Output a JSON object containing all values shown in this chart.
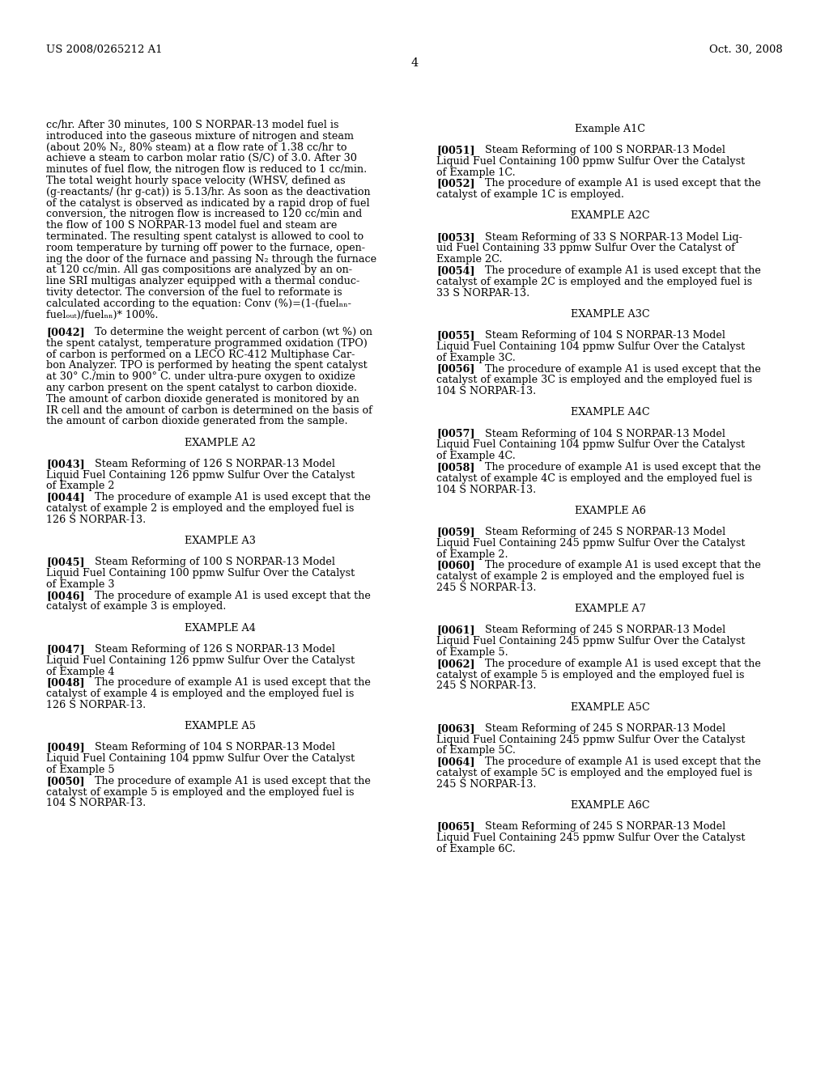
{
  "header_left": "US 2008/0265212 A1",
  "header_right": "Oct. 30, 2008",
  "page_number": "4",
  "background_color": "#ffffff",
  "left_col_lines": [
    "cc/hr. After 30 minutes, 100 S NORPAR-13 model fuel is",
    "introduced into the gaseous mixture of nitrogen and steam",
    "(about 20% N₂, 80% steam) at a flow rate of 1.38 cc/hr to",
    "achieve a steam to carbon molar ratio (S/C) of 3.0. After 30",
    "minutes of fuel flow, the nitrogen flow is reduced to 1 cc/min.",
    "The total weight hourly space velocity (WHSV, defined as",
    "(g-reactants/ (hr g-cat)) is 5.13/hr. As soon as the deactivation",
    "of the catalyst is observed as indicated by a rapid drop of fuel",
    "conversion, the nitrogen flow is increased to 120 cc/min and",
    "the flow of 100 S NORPAR-13 model fuel and steam are",
    "terminated. The resulting spent catalyst is allowed to cool to",
    "room temperature by turning off power to the furnace, open-",
    "ing the door of the furnace and passing N₂ through the furnace",
    "at 120 cc/min. All gas compositions are analyzed by an on-",
    "line SRI multigas analyzer equipped with a thermal conduc-",
    "tivity detector. The conversion of the fuel to reformate is",
    "calculated according to the equation: Conv (%)=(1-(fuelₙₙ-",
    "fuelₒᵤₜ)/fuelₙₙ)* 100%.",
    "",
    "[0042]    To determine the weight percent of carbon (wt %) on",
    "the spent catalyst, temperature programmed oxidation (TPO)",
    "of carbon is performed on a LECO RC-412 Multiphase Car-",
    "bon Analyzer. TPO is performed by heating the spent catalyst",
    "at 30° C./min to 900° C. under ultra-pure oxygen to oxidize",
    "any carbon present on the spent catalyst to carbon dioxide.",
    "The amount of carbon dioxide generated is monitored by an",
    "IR cell and the amount of carbon is determined on the basis of",
    "the amount of carbon dioxide generated from the sample.",
    "",
    "CENTER:EXAMPLE A2",
    "",
    "[0043]    Steam Reforming of 126 S NORPAR-13 Model",
    "Liquid Fuel Containing 126 ppmw Sulfur Over the Catalyst",
    "of Example 2",
    "[0044]    The procedure of example A1 is used except that the",
    "catalyst of example 2 is employed and the employed fuel is",
    "126 S NORPAR-13.",
    "",
    "CENTER:EXAMPLE A3",
    "",
    "[0045]    Steam Reforming of 100 S NORPAR-13 Model",
    "Liquid Fuel Containing 100 ppmw Sulfur Over the Catalyst",
    "of Example 3",
    "[0046]    The procedure of example A1 is used except that the",
    "catalyst of example 3 is employed.",
    "",
    "CENTER:EXAMPLE A4",
    "",
    "[0047]    Steam Reforming of 126 S NORPAR-13 Model",
    "Liquid Fuel Containing 126 ppmw Sulfur Over the Catalyst",
    "of Example 4",
    "[0048]    The procedure of example A1 is used except that the",
    "catalyst of example 4 is employed and the employed fuel is",
    "126 S NORPAR-13.",
    "",
    "CENTER:EXAMPLE A5",
    "",
    "[0049]    Steam Reforming of 104 S NORPAR-13 Model",
    "Liquid Fuel Containing 104 ppmw Sulfur Over the Catalyst",
    "of Example 5",
    "[0050]    The procedure of example A1 is used except that the",
    "catalyst of example 5 is employed and the employed fuel is",
    "104 S NORPAR-13."
  ],
  "right_col_lines": [
    "CENTER:Example A1C",
    "",
    "[0051]    Steam Reforming of 100 S NORPAR-13 Model",
    "Liquid Fuel Containing 100 ppmw Sulfur Over the Catalyst",
    "of Example 1C.",
    "[0052]    The procedure of example A1 is used except that the",
    "catalyst of example 1C is employed.",
    "",
    "CENTER:EXAMPLE A2C",
    "",
    "[0053]    Steam Reforming of 33 S NORPAR-13 Model Liq-",
    "uid Fuel Containing 33 ppmw Sulfur Over the Catalyst of",
    "Example 2C.",
    "[0054]    The procedure of example A1 is used except that the",
    "catalyst of example 2C is employed and the employed fuel is",
    "33 S NORPAR-13.",
    "",
    "CENTER:EXAMPLE A3C",
    "",
    "[0055]    Steam Reforming of 104 S NORPAR-13 Model",
    "Liquid Fuel Containing 104 ppmw Sulfur Over the Catalyst",
    "of Example 3C.",
    "[0056]    The procedure of example A1 is used except that the",
    "catalyst of example 3C is employed and the employed fuel is",
    "104 S NORPAR-13.",
    "",
    "CENTER:EXAMPLE A4C",
    "",
    "[0057]    Steam Reforming of 104 S NORPAR-13 Model",
    "Liquid Fuel Containing 104 ppmw Sulfur Over the Catalyst",
    "of Example 4C.",
    "[0058]    The procedure of example A1 is used except that the",
    "catalyst of example 4C is employed and the employed fuel is",
    "104 S NORPAR-13.",
    "",
    "CENTER:EXAMPLE A6",
    "",
    "[0059]    Steam Reforming of 245 S NORPAR-13 Model",
    "Liquid Fuel Containing 245 ppmw Sulfur Over the Catalyst",
    "of Example 2.",
    "[0060]    The procedure of example A1 is used except that the",
    "catalyst of example 2 is employed and the employed fuel is",
    "245 S NORPAR-13.",
    "",
    "CENTER:EXAMPLE A7",
    "",
    "[0061]    Steam Reforming of 245 S NORPAR-13 Model",
    "Liquid Fuel Containing 245 ppmw Sulfur Over the Catalyst",
    "of Example 5.",
    "[0062]    The procedure of example A1 is used except that the",
    "catalyst of example 5 is employed and the employed fuel is",
    "245 S NORPAR-13.",
    "",
    "CENTER:EXAMPLE A5C",
    "",
    "[0063]    Steam Reforming of 245 S NORPAR-13 Model",
    "Liquid Fuel Containing 245 ppmw Sulfur Over the Catalyst",
    "of Example 5C.",
    "[0064]    The procedure of example A1 is used except that the",
    "catalyst of example 5C is employed and the employed fuel is",
    "245 S NORPAR-13.",
    "",
    "CENTER:EXAMPLE A6C",
    "",
    "[0065]    Steam Reforming of 245 S NORPAR-13 Model",
    "Liquid Fuel Containing 245 ppmw Sulfur Over the Catalyst",
    "of Example 6C."
  ],
  "bold_prefixes": [
    "[0042]",
    "[0043]",
    "[0044]",
    "[0045]",
    "[0046]",
    "[0047]",
    "[0048]",
    "[0049]",
    "[0050]",
    "[0051]",
    "[0052]",
    "[0053]",
    "[0054]",
    "[0055]",
    "[0056]",
    "[0057]",
    "[0058]",
    "[0059]",
    "[0060]",
    "[0061]",
    "[0062]",
    "[0063]",
    "[0064]",
    "[0065]"
  ]
}
